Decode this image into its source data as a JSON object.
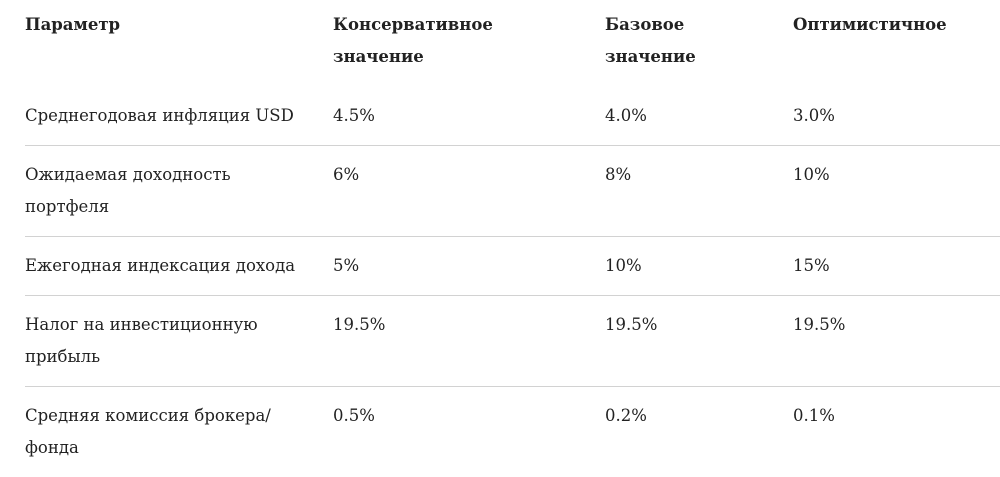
{
  "table": {
    "header": [
      "Параметр",
      "Консервативное значение",
      "Базовое значение",
      "Оптимистичное"
    ],
    "rows": [
      [
        "Среднегодовая инфляция USD",
        "4.5%",
        "4.0%",
        "3.0%"
      ],
      [
        "Ожидаемая доходность портфеля",
        "6%",
        "8%",
        "10%"
      ],
      [
        "Ежегодная индексация дохода",
        "5%",
        "10%",
        "15%"
      ],
      [
        "Налог на инвестиционную прибыль",
        "19.5%",
        "19.5%",
        "19.5%"
      ],
      [
        "Средняя комиссия брокера/ фонда",
        "0.5%",
        "0.2%",
        "0.1%"
      ]
    ]
  }
}
